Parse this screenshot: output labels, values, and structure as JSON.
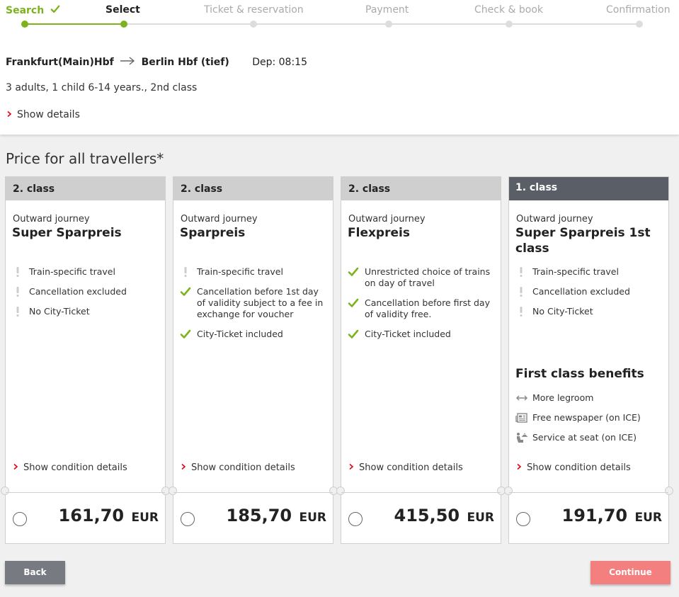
{
  "steps": [
    {
      "label": "Search",
      "state": "done"
    },
    {
      "label": "Select",
      "state": "active"
    },
    {
      "label": "Ticket & reservation",
      "state": "todo"
    },
    {
      "label": "Payment",
      "state": "todo"
    },
    {
      "label": "Check & book",
      "state": "todo"
    },
    {
      "label": "Confirmation",
      "state": "todo"
    }
  ],
  "trip": {
    "from": "Frankfurt(Main)Hbf",
    "to": "Berlin Hbf (tief)",
    "departure": "Dep: 08:15",
    "travellers": "3 adults, 1 child 6-14 years., 2nd class",
    "show_details": "Show details"
  },
  "price_title": "Price for all travellers*",
  "offers": [
    {
      "class_label": "2. class",
      "journey": "Outward journey",
      "name": "Super Sparpreis",
      "features": [
        {
          "icon": "exclamation-icon",
          "text": "Train-specific travel"
        },
        {
          "icon": "exclamation-icon",
          "text": "Cancellation excluded"
        },
        {
          "icon": "exclamation-icon",
          "text": "No City-Ticket"
        }
      ],
      "condition_link": "Show condition details",
      "price": "161,70",
      "currency": "EUR"
    },
    {
      "class_label": "2. class",
      "journey": "Outward journey",
      "name": "Sparpreis",
      "features": [
        {
          "icon": "exclamation-icon",
          "text": "Train-specific travel"
        },
        {
          "icon": "check-icon",
          "text": "Cancellation before 1st day of validity subject to a fee in exchange for voucher"
        },
        {
          "icon": "check-icon",
          "text": "City-Ticket included"
        }
      ],
      "condition_link": "Show condition details",
      "price": "185,70",
      "currency": "EUR"
    },
    {
      "class_label": "2. class",
      "journey": "Outward journey",
      "name": "Flexpreis",
      "features": [
        {
          "icon": "check-icon",
          "text": "Unrestricted choice of trains on day of travel"
        },
        {
          "icon": "check-icon",
          "text": "Cancellation before first day of validity free."
        },
        {
          "icon": "check-icon",
          "text": "City-Ticket included"
        }
      ],
      "condition_link": "Show condition details",
      "price": "415,50",
      "currency": "EUR"
    },
    {
      "class_label": "1. class",
      "journey": "Outward journey",
      "name": "Super Sparpreis 1st class",
      "features": [
        {
          "icon": "exclamation-icon",
          "text": "Train-specific travel"
        },
        {
          "icon": "exclamation-icon",
          "text": "Cancellation excluded"
        },
        {
          "icon": "exclamation-icon",
          "text": "No City-Ticket"
        }
      ],
      "benefits_title": "First class benefits",
      "benefits": [
        {
          "icon": "legroom-icon",
          "text": "More legroom"
        },
        {
          "icon": "newspaper-icon",
          "text": "Free newspaper (on ICE)"
        },
        {
          "icon": "seat-service-icon",
          "text": "Service at seat (on ICE)"
        }
      ],
      "condition_link": "Show condition details",
      "price": "191,70",
      "currency": "EUR"
    }
  ],
  "buttons": {
    "back": "Back",
    "continue": "Continue"
  },
  "colors": {
    "accent_green": "#7cb31c",
    "link_red": "#e2001a",
    "continue_bg": "#f47f7f",
    "first_class_header": "#5a5e66"
  }
}
